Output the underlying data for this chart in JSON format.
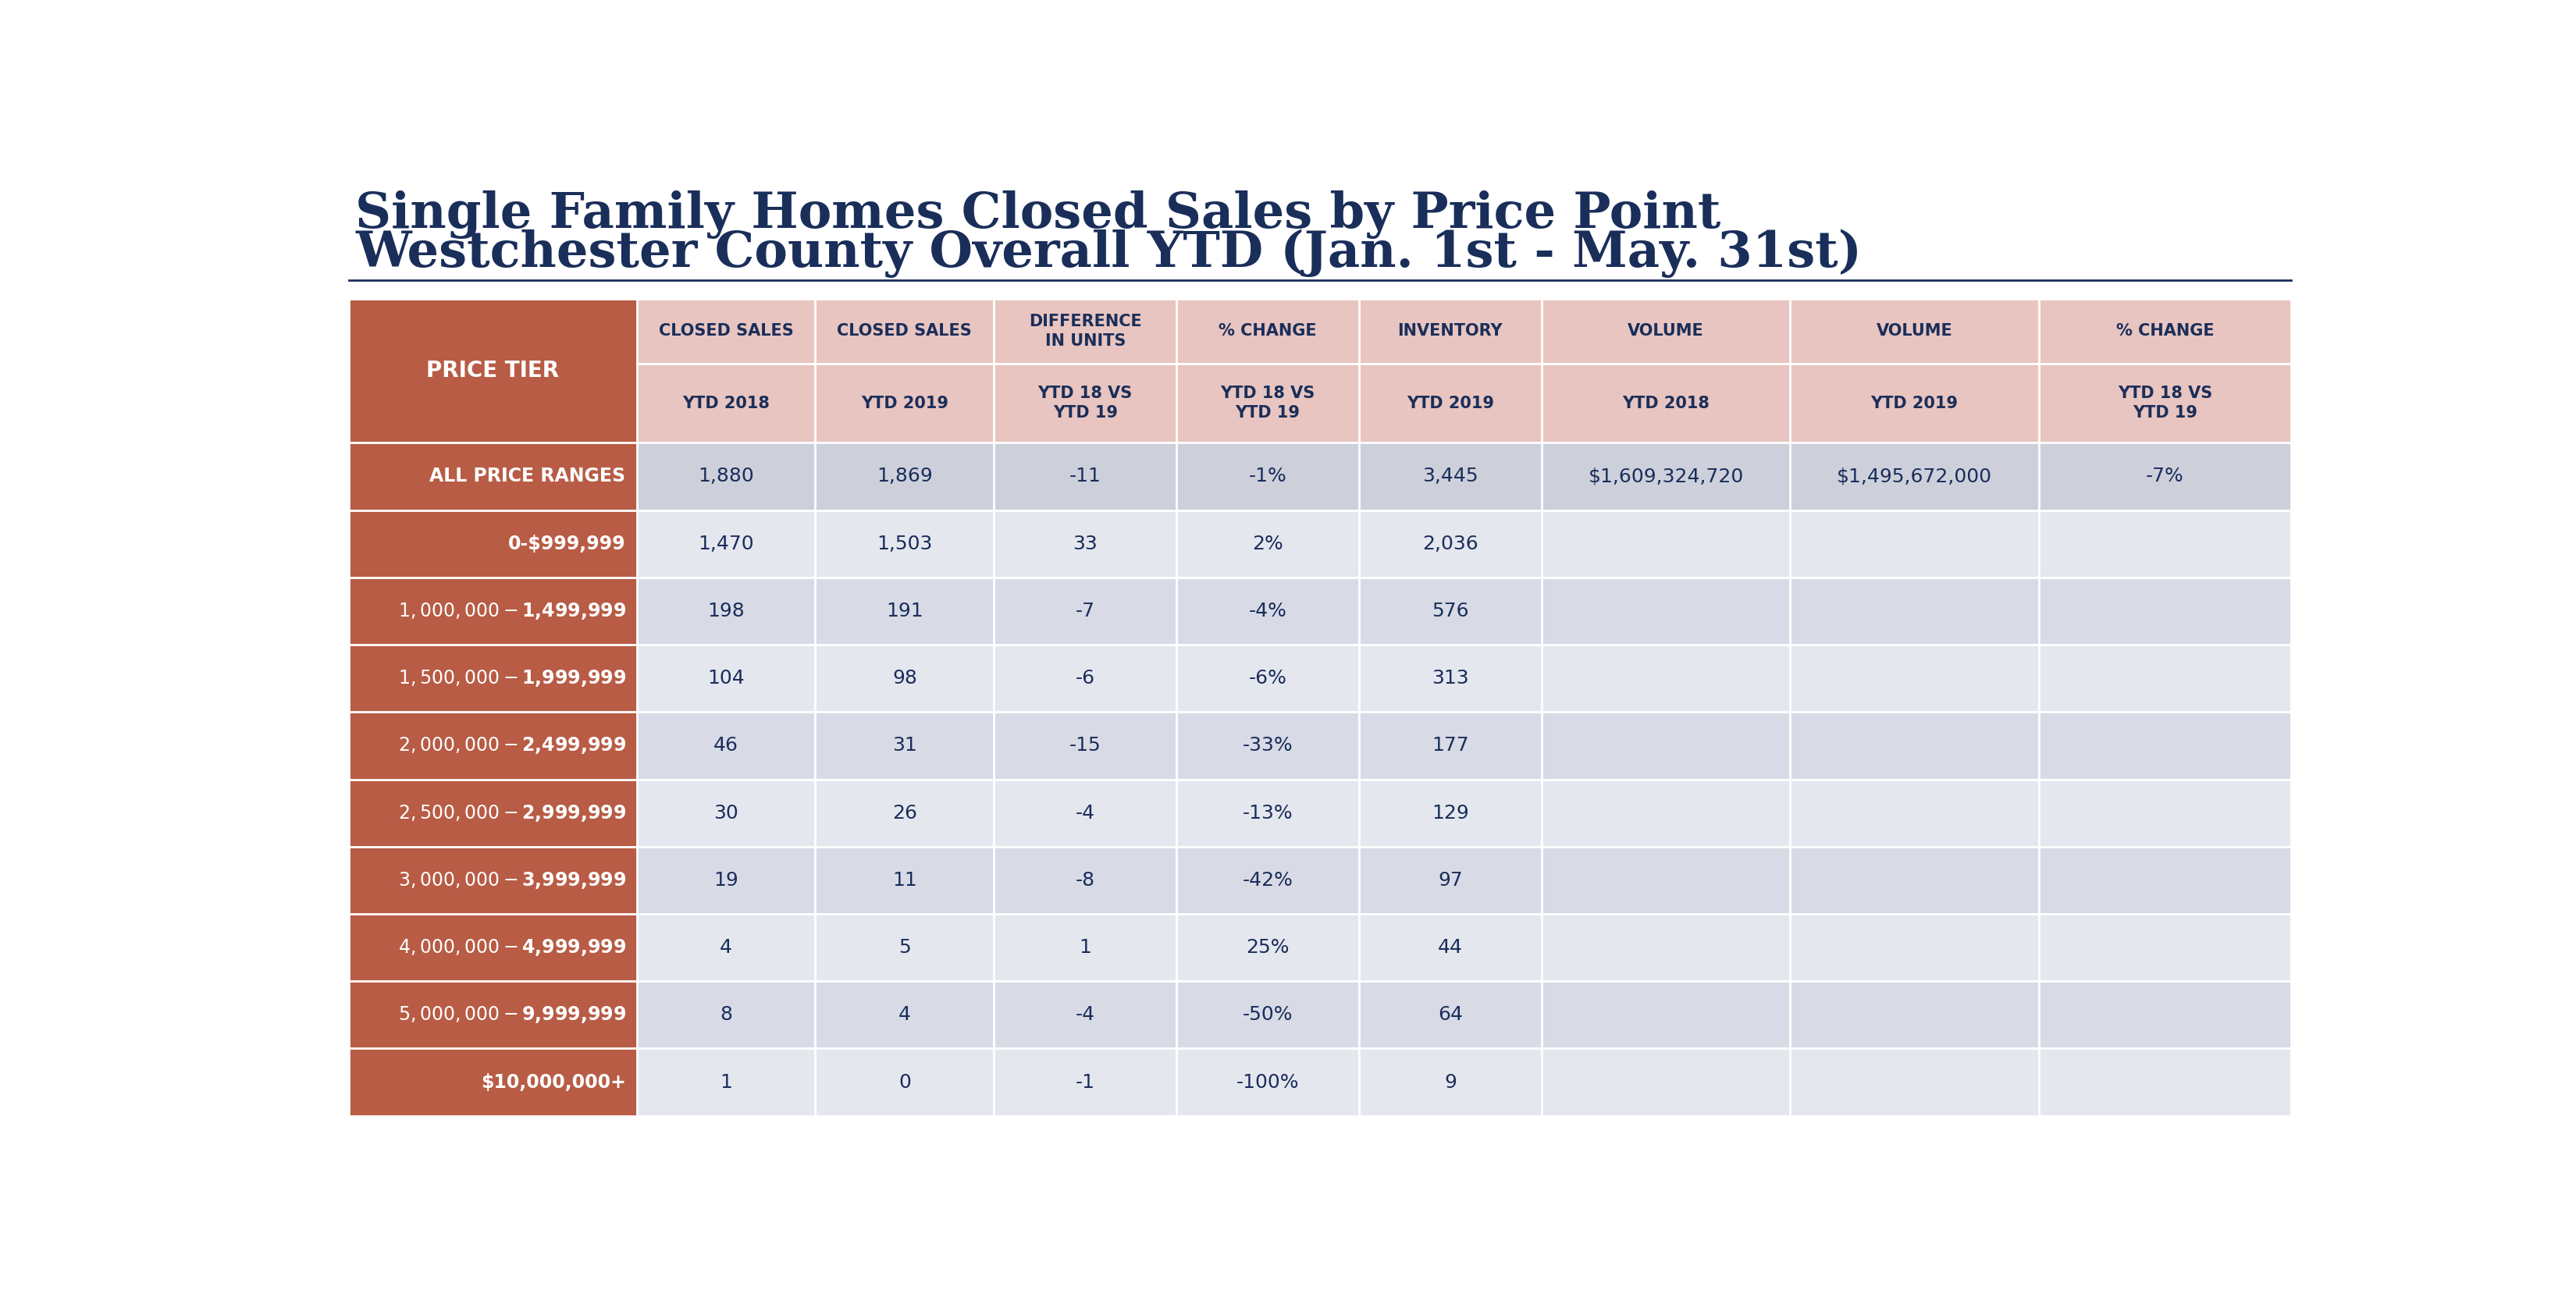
{
  "title_line1": "Single Family Homes Closed Sales by Price Point",
  "title_line2": "Westchester County Overall YTD (Jan. 1st - May. 31st)",
  "title_color": "#1a2e5a",
  "title_fontsize": 46,
  "background_color": "#ffffff",
  "col_headers_line1": [
    "CLOSED SALES",
    "CLOSED SALES",
    "DIFFERENCE\nIN UNITS",
    "% CHANGE",
    "INVENTORY",
    "VOLUME",
    "VOLUME",
    "% CHANGE"
  ],
  "col_headers_line2": [
    "YTD 2018",
    "YTD 2019",
    "YTD 18 VS\nYTD 19",
    "YTD 18 VS\nYTD 19",
    "YTD 2019",
    "YTD 2018",
    "YTD 2019",
    "YTD 18 VS\nYTD 19"
  ],
  "header_bg_color": "#e8c5c0",
  "header_text_color": "#1a2e5a",
  "price_tier_bg": "#b85c45",
  "price_tier_text": "#ffffff",
  "all_price_data_bg": "#cdd0db",
  "row_bg_odd": "#d8dbe6",
  "row_bg_even": "#e5e7ef",
  "cell_text_color": "#1a2e5a",
  "divider_color": "#ffffff",
  "price_tiers": [
    "ALL PRICE RANGES",
    "0-$999,999",
    "$1,000,000 - $1,499,999",
    "$1,500,000 - $1,999,999",
    "$2,000,000 - $2,499,999",
    "$2,500,000 - $2,999,999",
    "$3,000,000 - $3,999,999",
    "$4,000,000 - $4,999,999",
    "$5,000,000 - $9,999,999",
    "$10,000,000+"
  ],
  "table_data": [
    [
      "1,880",
      "1,869",
      "-11",
      "-1%",
      "3,445",
      "$1,609,324,720",
      "$1,495,672,000",
      "-7%"
    ],
    [
      "1,470",
      "1,503",
      "33",
      "2%",
      "2,036",
      "",
      "",
      ""
    ],
    [
      "198",
      "191",
      "-7",
      "-4%",
      "576",
      "",
      "",
      ""
    ],
    [
      "104",
      "98",
      "-6",
      "-6%",
      "313",
      "",
      "",
      ""
    ],
    [
      "46",
      "31",
      "-15",
      "-33%",
      "177",
      "",
      "",
      ""
    ],
    [
      "30",
      "26",
      "-4",
      "-13%",
      "129",
      "",
      "",
      ""
    ],
    [
      "19",
      "11",
      "-8",
      "-42%",
      "97",
      "",
      "",
      ""
    ],
    [
      "4",
      "5",
      "1",
      "25%",
      "44",
      "",
      "",
      ""
    ],
    [
      "8",
      "4",
      "-4",
      "-50%",
      "64",
      "",
      "",
      ""
    ],
    [
      "1",
      "0",
      "-1",
      "-100%",
      "9",
      "",
      "",
      ""
    ]
  ]
}
